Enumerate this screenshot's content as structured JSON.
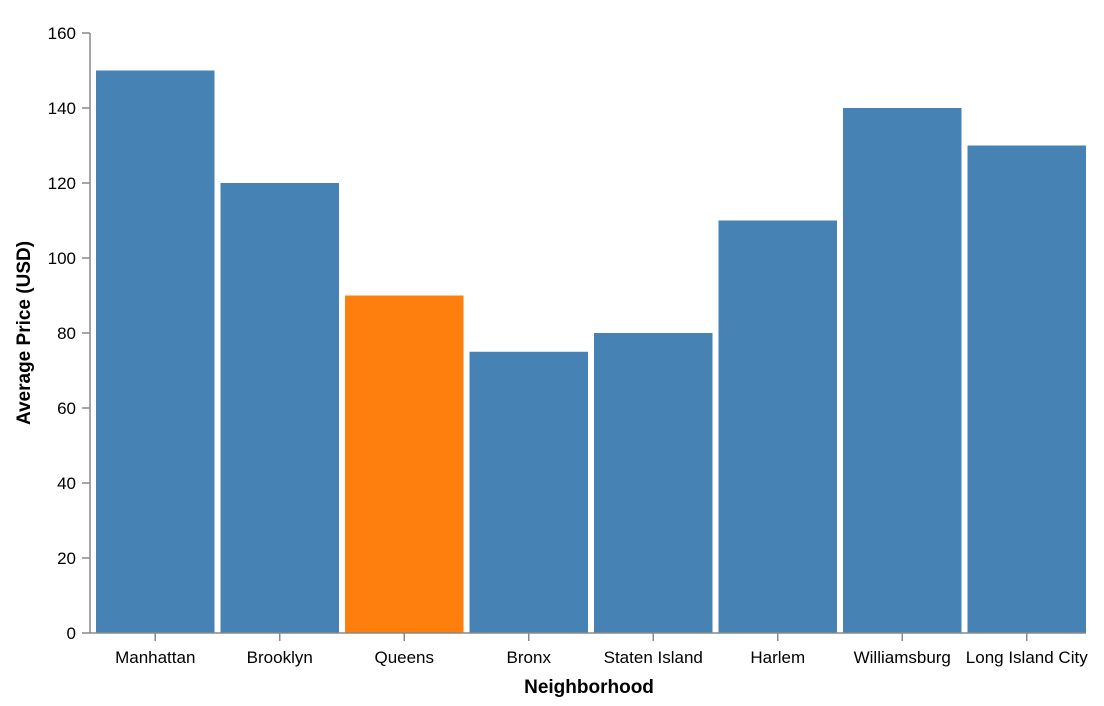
{
  "colors": {
    "bar_default": "#4682b4",
    "bar_highlight": "#ff7f0e"
  },
  "chart_data": {
    "type": "bar",
    "categories": [
      "Manhattan",
      "Brooklyn",
      "Queens",
      "Bronx",
      "Staten Island",
      "Harlem",
      "Williamsburg",
      "Long Island City"
    ],
    "values": [
      150,
      120,
      90,
      75,
      80,
      110,
      140,
      130
    ],
    "highlighted_category": "Queens",
    "xlabel": "Neighborhood",
    "ylabel": "Average Price (USD)",
    "ylim": [
      0,
      160
    ],
    "yticks": [
      0,
      20,
      40,
      60,
      80,
      100,
      120,
      140,
      160
    ],
    "grid": false,
    "legend": "none"
  }
}
